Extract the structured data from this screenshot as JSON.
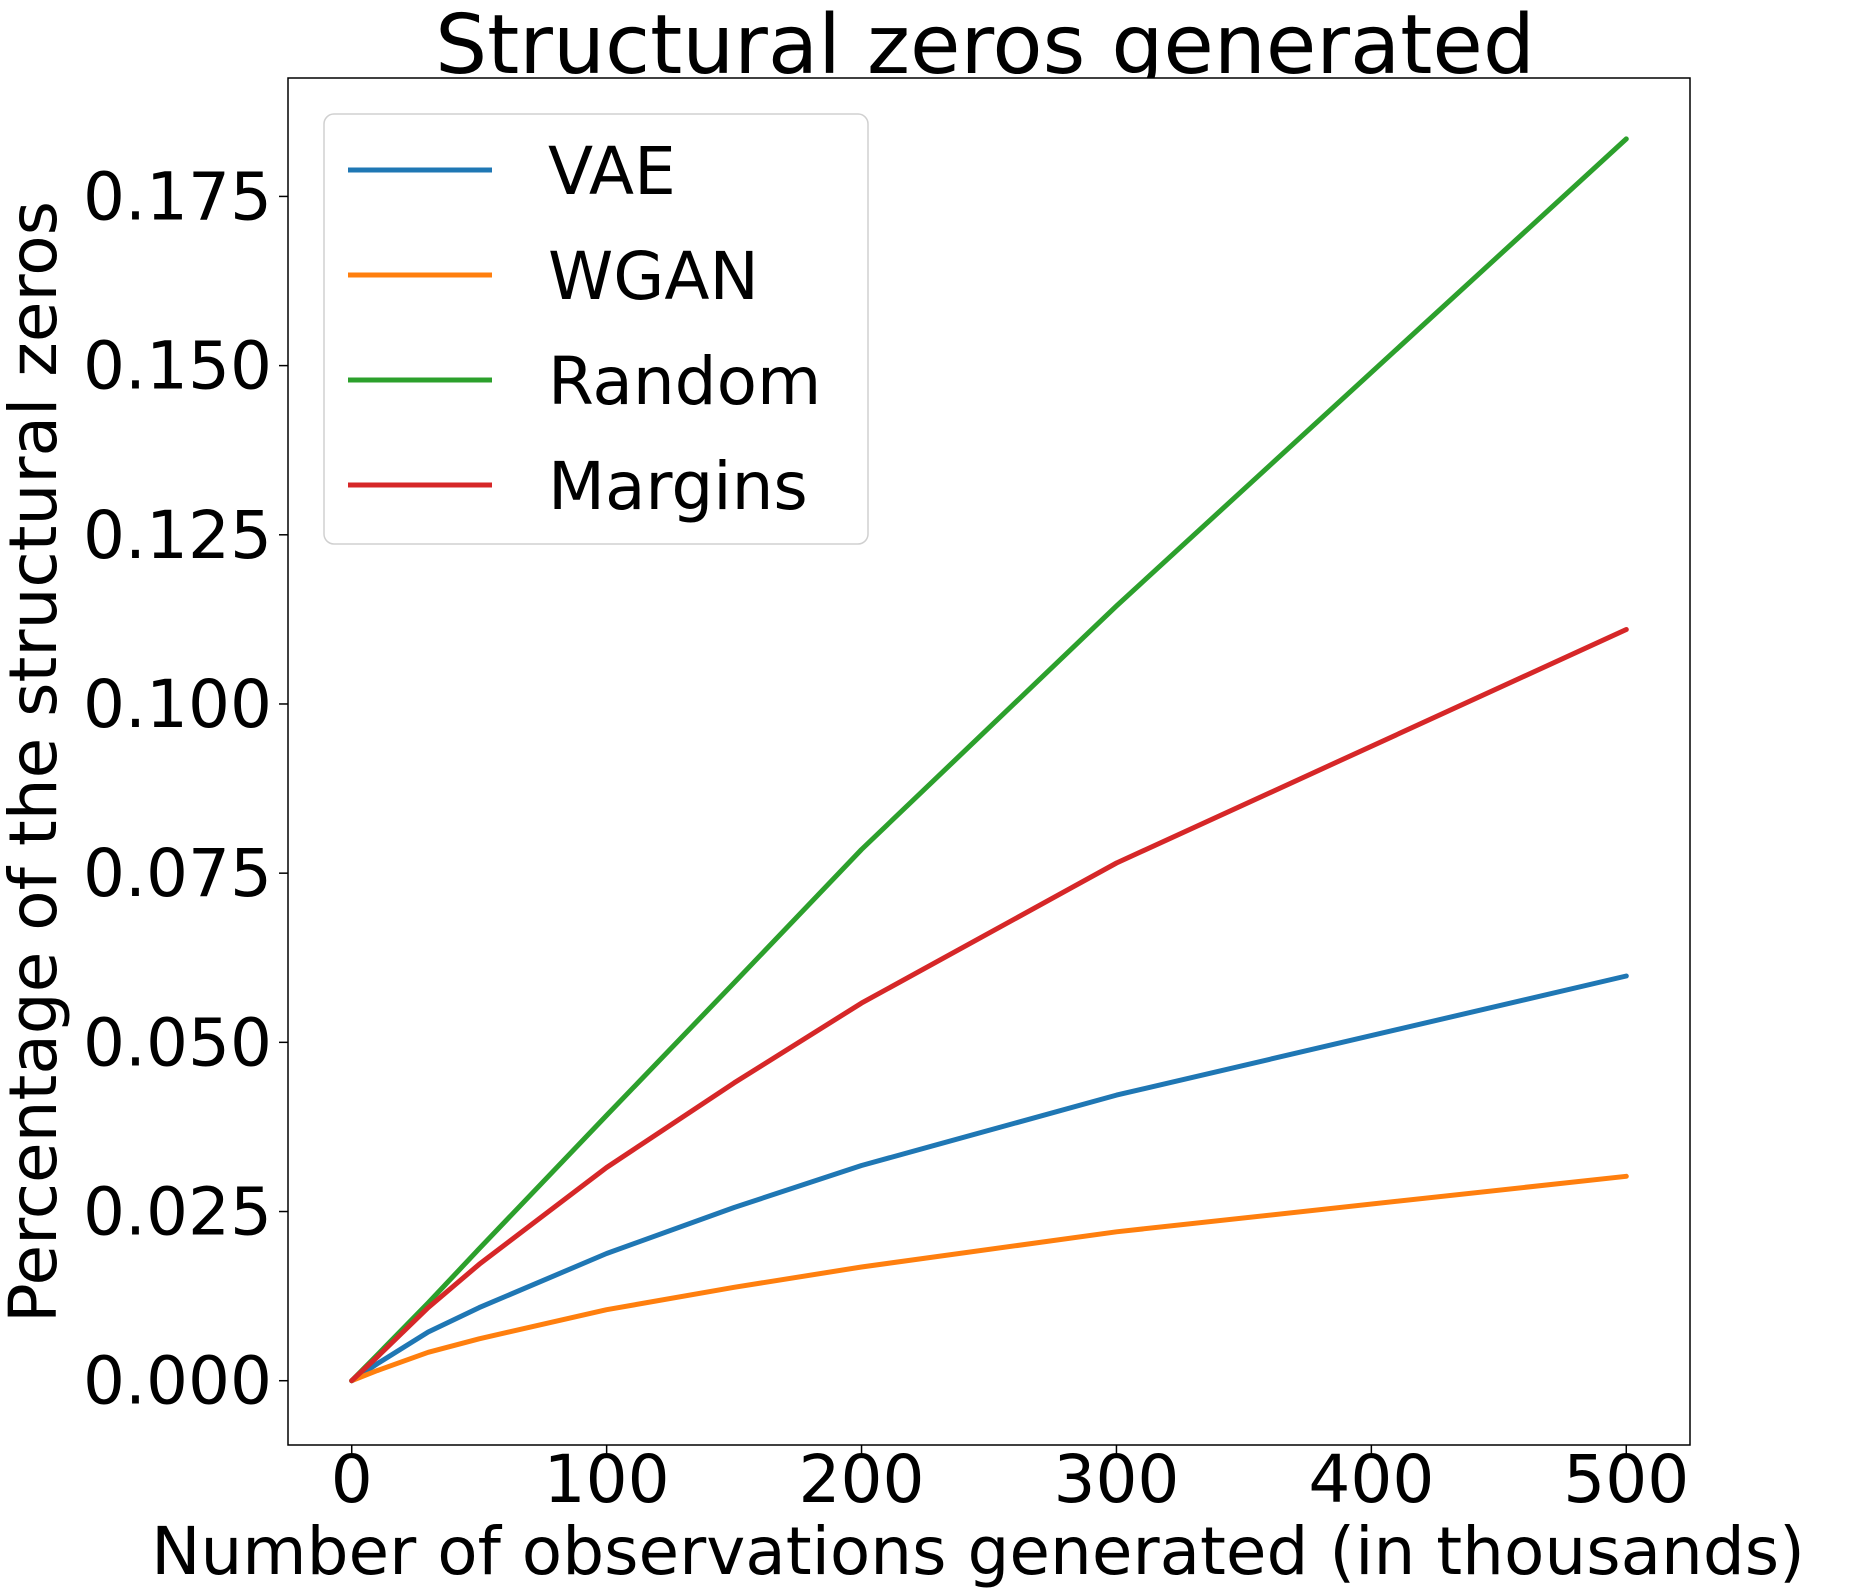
{
  "chart_data": {
    "type": "line",
    "title": "Structural zeros generated",
    "xlabel": "Number of observations generated (in thousands)",
    "ylabel": "Percentage of the structural zeros",
    "x": [
      0,
      10,
      30,
      50,
      100,
      150,
      200,
      300,
      500
    ],
    "xlim": [
      -25,
      525
    ],
    "ylim": [
      -0.0095,
      0.1925
    ],
    "xticks": [
      0,
      100,
      200,
      300,
      400,
      500
    ],
    "xtick_labels": [
      "0",
      "100",
      "200",
      "300",
      "400",
      "500"
    ],
    "yticks": [
      0.0,
      0.025,
      0.05,
      0.075,
      0.1,
      0.125,
      0.15,
      0.175
    ],
    "ytick_labels": [
      "0.000",
      "0.025",
      "0.050",
      "0.075",
      "0.100",
      "0.125",
      "0.150",
      "0.175"
    ],
    "grid": false,
    "legend_position": "top-left",
    "series": [
      {
        "name": "VAE",
        "color": "#1f77b4",
        "values": [
          0.0,
          0.0025,
          0.0072,
          0.0108,
          0.0188,
          0.0256,
          0.0318,
          0.0422,
          0.0598
        ]
      },
      {
        "name": "WGAN",
        "color": "#ff7f0e",
        "values": [
          0.0,
          0.0015,
          0.0042,
          0.0062,
          0.0105,
          0.0138,
          0.0168,
          0.022,
          0.0302
        ]
      },
      {
        "name": "Random",
        "color": "#2ca02c",
        "values": [
          0.0,
          0.0038,
          0.0115,
          0.0195,
          0.0392,
          0.0588,
          0.0785,
          0.1145,
          0.1835
        ]
      },
      {
        "name": "Margins",
        "color": "#d62728",
        "values": [
          0.0,
          0.0035,
          0.0108,
          0.0172,
          0.0315,
          0.044,
          0.0558,
          0.0765,
          0.111
        ]
      }
    ]
  }
}
